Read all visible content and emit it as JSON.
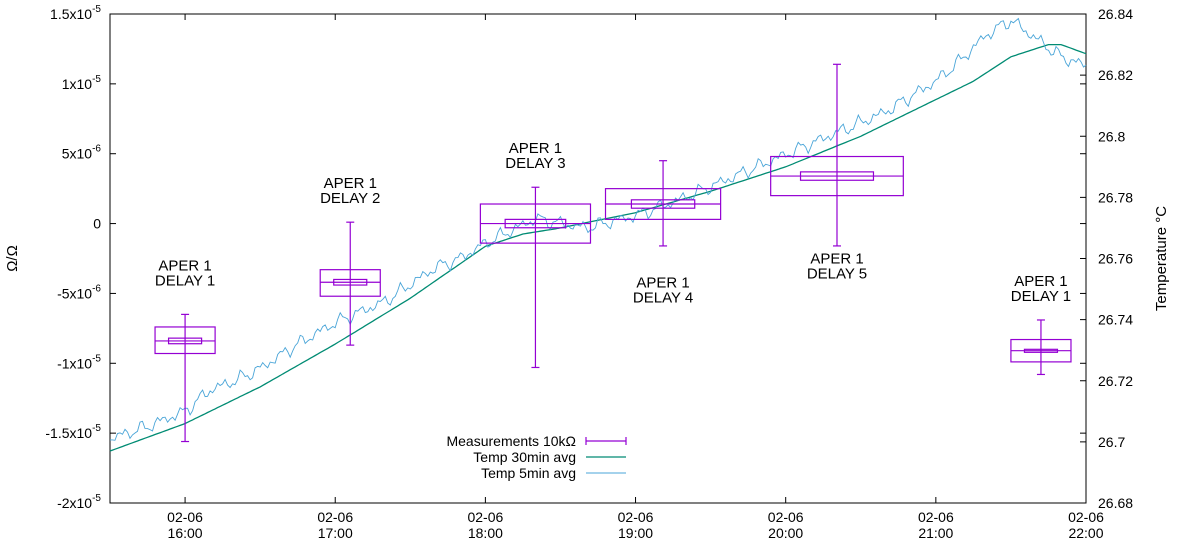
{
  "chart_data": {
    "type": "box-and-line",
    "ylabel_left": "Ω/Ω",
    "ylabel_right": "Temperature °C",
    "ylim_left": [
      -2e-05,
      1.5e-05
    ],
    "ylim_right": [
      26.68,
      26.84
    ],
    "x_range": [
      "02-06 15:30",
      "02-06 22:00"
    ],
    "left_ticks": [
      {
        "value": 1.5e-05,
        "base": "1.5x10",
        "exp": "-5"
      },
      {
        "value": 1e-05,
        "base": "1x10",
        "exp": "-5"
      },
      {
        "value": 5e-06,
        "base": "5x10",
        "exp": "-6"
      },
      {
        "value": 0,
        "base": "0",
        "exp": ""
      },
      {
        "value": -5e-06,
        "base": "-5x10",
        "exp": "-6"
      },
      {
        "value": -1e-05,
        "base": "-1x10",
        "exp": "-5"
      },
      {
        "value": -1.5e-05,
        "base": "-1.5x10",
        "exp": "-5"
      },
      {
        "value": -2e-05,
        "base": "-2x10",
        "exp": "-5"
      }
    ],
    "right_ticks": [
      {
        "value": 26.84,
        "label": "26.84"
      },
      {
        "value": 26.82,
        "label": "26.82"
      },
      {
        "value": 26.8,
        "label": "26.8"
      },
      {
        "value": 26.78,
        "label": "26.78"
      },
      {
        "value": 26.76,
        "label": "26.76"
      },
      {
        "value": 26.74,
        "label": "26.74"
      },
      {
        "value": 26.72,
        "label": "26.72"
      },
      {
        "value": 26.7,
        "label": "26.7"
      },
      {
        "value": 26.68,
        "label": "26.68"
      }
    ],
    "x_ticks": [
      {
        "hour": 16,
        "date": "02-06",
        "time": "16:00"
      },
      {
        "hour": 17,
        "date": "02-06",
        "time": "17:00"
      },
      {
        "hour": 18,
        "date": "02-06",
        "time": "18:00"
      },
      {
        "hour": 19,
        "date": "02-06",
        "time": "19:00"
      },
      {
        "hour": 20,
        "date": "02-06",
        "time": "20:00"
      },
      {
        "hour": 21,
        "date": "02-06",
        "time": "21:00"
      },
      {
        "hour": 22,
        "date": "02-06",
        "time": "22:00"
      }
    ],
    "measurements": {
      "name": "Measurements 10kΩ",
      "color": "#9400d3",
      "boxes": [
        {
          "x_start": "15:48",
          "x_end": "16:12",
          "q1": -9.3e-06,
          "q3": -7.4e-06,
          "median": -8.4e-06,
          "mean": -8.4e-06,
          "mean_lo": -8.6e-06,
          "mean_hi": -8.2e-06,
          "min": -1.56e-05,
          "max": -6.5e-06,
          "label": [
            "APER 1",
            "DELAY 1"
          ],
          "label_pos": "above"
        },
        {
          "x_start": "16:54",
          "x_end": "17:18",
          "q1": -5.2e-06,
          "q3": -3.3e-06,
          "median": -4.2e-06,
          "mean": -4.2e-06,
          "mean_lo": -4.4e-06,
          "mean_hi": -4e-06,
          "min": -8.7e-06,
          "max": 1e-07,
          "label": [
            "APER 1",
            "DELAY 2"
          ],
          "label_pos": "above"
        },
        {
          "x_start": "17:58",
          "x_end": "18:42",
          "q1": -1.4e-06,
          "q3": 1.4e-06,
          "median": 0.0,
          "mean": 0.0,
          "mean_lo": -3e-07,
          "mean_hi": 3e-07,
          "min": -1.03e-05,
          "max": 2.6e-06,
          "label": [
            "APER 1",
            "DELAY 3"
          ],
          "label_pos": "above"
        },
        {
          "x_start": "18:48",
          "x_end": "19:34",
          "q1": 3e-07,
          "q3": 2.5e-06,
          "median": 1.4e-06,
          "mean": 1.4e-06,
          "mean_lo": 1.1e-06,
          "mean_hi": 1.7e-06,
          "min": -1.6e-06,
          "max": 4.5e-06,
          "label": [
            "APER 1",
            "DELAY 4"
          ],
          "label_pos": "below"
        },
        {
          "x_start": "19:54",
          "x_end": "20:47",
          "q1": 2e-06,
          "q3": 4.8e-06,
          "median": 3.4e-06,
          "mean": 3.4e-06,
          "mean_lo": 3.1e-06,
          "mean_hi": 3.7e-06,
          "min": -1.6e-06,
          "max": 1.14e-05,
          "label": [
            "APER 1",
            "DELAY 5"
          ],
          "label_pos": "below"
        },
        {
          "x_start": "21:30",
          "x_end": "21:54",
          "q1": -9.9e-06,
          "q3": -8.3e-06,
          "median": -9.1e-06,
          "mean": -9.1e-06,
          "mean_lo": -9.2e-06,
          "mean_hi": -9e-06,
          "min": -1.08e-05,
          "max": -6.9e-06,
          "label": [
            "APER 1",
            "DELAY 1"
          ],
          "label_pos": "above"
        }
      ]
    },
    "temp_30min": {
      "name": "Temp 30min avg",
      "color": "#008b73",
      "x": [
        "15:30",
        "16:00",
        "16:30",
        "17:00",
        "17:30",
        "18:00",
        "18:15",
        "18:30",
        "19:00",
        "19:30",
        "20:00",
        "20:30",
        "21:00",
        "21:15",
        "21:30",
        "21:45",
        "21:50",
        "22:00"
      ],
      "y": [
        26.697,
        26.706,
        26.718,
        26.732,
        26.747,
        26.764,
        26.768,
        26.77,
        26.775,
        26.782,
        26.79,
        26.8,
        26.812,
        26.818,
        26.826,
        26.83,
        26.83,
        26.827
      ]
    },
    "temp_5min": {
      "name": "Temp 5min avg",
      "color": "#4aa5d8",
      "x": [
        "15:30",
        "15:45",
        "16:00",
        "16:10",
        "16:20",
        "16:30",
        "16:45",
        "17:00",
        "17:20",
        "17:40",
        "17:50",
        "18:00",
        "18:20",
        "18:40",
        "19:00",
        "19:20",
        "19:40",
        "20:00",
        "20:20",
        "20:40",
        "21:00",
        "21:10",
        "21:20",
        "21:30",
        "21:40",
        "21:50",
        "22:00"
      ],
      "y": [
        26.701,
        26.705,
        26.71,
        26.717,
        26.72,
        26.724,
        26.732,
        26.739,
        26.746,
        26.757,
        26.76,
        26.765,
        26.773,
        26.77,
        26.774,
        26.78,
        26.787,
        26.794,
        26.801,
        26.808,
        26.818,
        26.825,
        26.833,
        26.838,
        26.832,
        26.826,
        26.823
      ]
    }
  }
}
